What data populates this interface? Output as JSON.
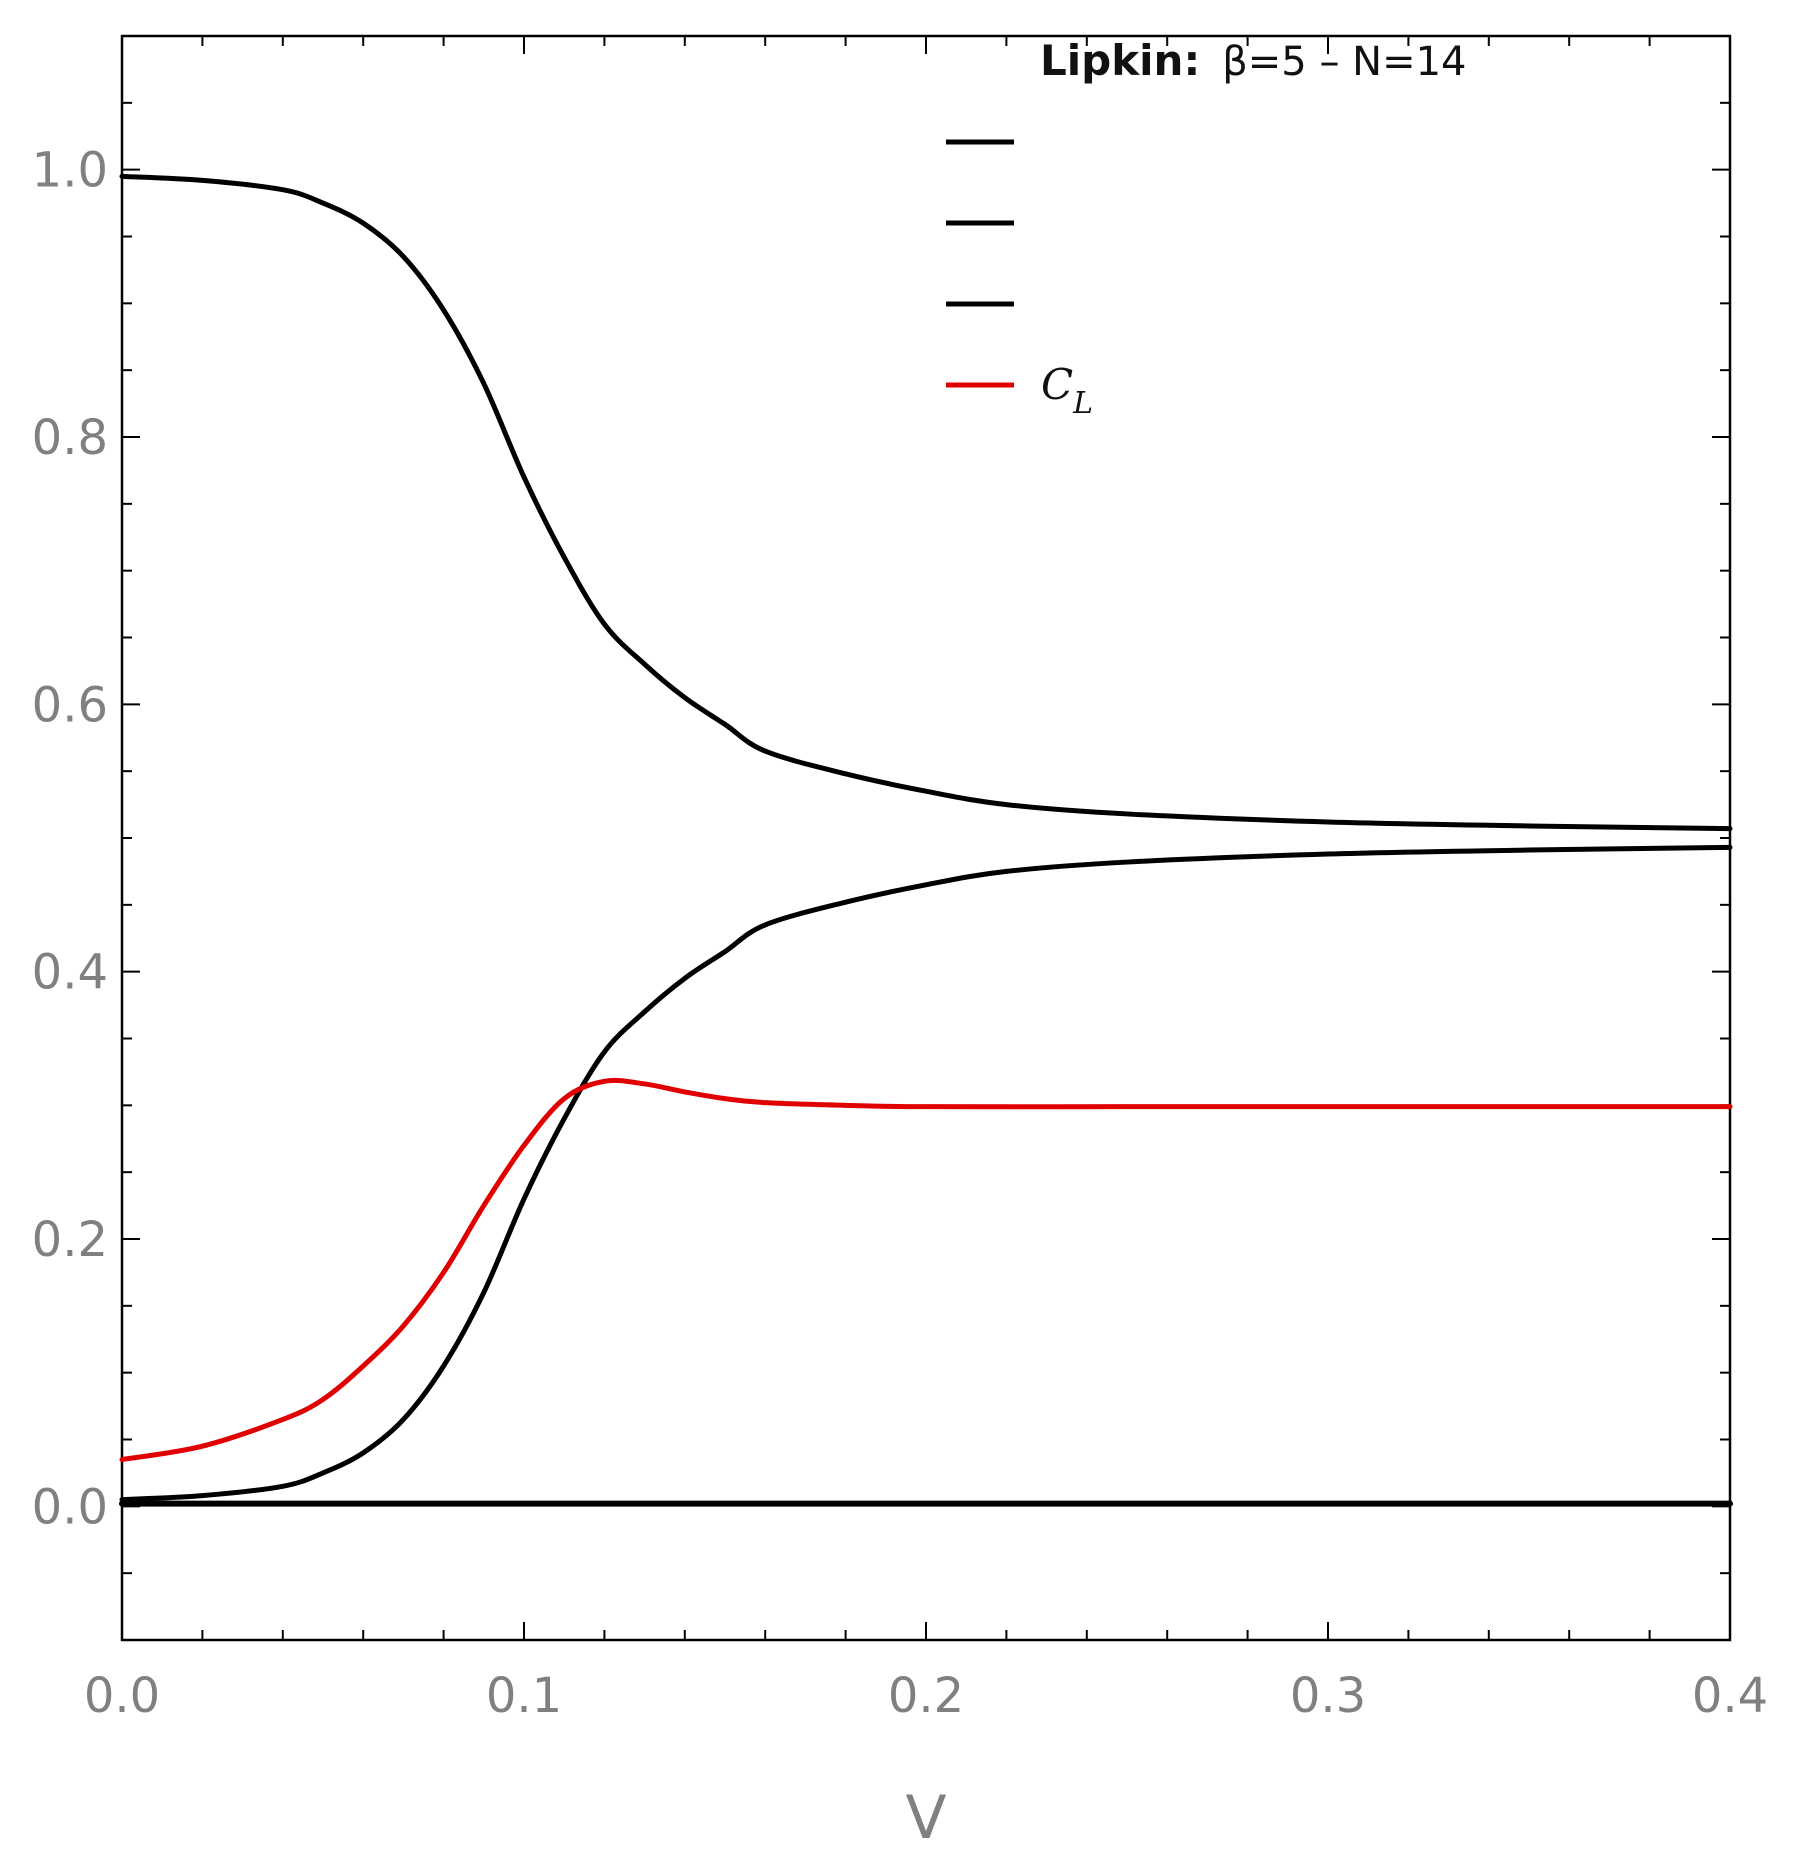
{
  "chart_data": {
    "type": "line",
    "title_bold": "Lipkin:",
    "title_rest": "β=5 – N=14",
    "xlabel": "V",
    "ylabel": "",
    "xlim": [
      0.0,
      0.4
    ],
    "ylim": [
      -0.1,
      1.1
    ],
    "x_ticks": [
      "0.0",
      "0.1",
      "0.2",
      "0.3",
      "0.4"
    ],
    "y_ticks": [
      "0.0",
      "0.2",
      "0.4",
      "0.6",
      "0.8",
      "1.0"
    ],
    "grid": false,
    "legend_position": "top-right",
    "legend": [
      {
        "label": "",
        "color": "#000000"
      },
      {
        "label": "",
        "color": "#000000"
      },
      {
        "label": "",
        "color": "#000000"
      },
      {
        "label": "C",
        "subscript": "L",
        "color": "#e00000"
      }
    ],
    "series": [
      {
        "color": "#000000",
        "x": [
          0.0,
          0.02,
          0.04,
          0.05,
          0.06,
          0.07,
          0.08,
          0.09,
          0.1,
          0.11,
          0.12,
          0.13,
          0.14,
          0.15,
          0.16,
          0.18,
          0.2,
          0.22,
          0.25,
          0.3,
          0.35,
          0.4
        ],
        "y": [
          0.995,
          0.992,
          0.985,
          0.975,
          0.96,
          0.935,
          0.895,
          0.84,
          0.77,
          0.71,
          0.66,
          0.63,
          0.605,
          0.585,
          0.565,
          0.548,
          0.535,
          0.525,
          0.518,
          0.512,
          0.509,
          0.507
        ]
      },
      {
        "color": "#000000",
        "x": [
          0.0,
          0.02,
          0.04,
          0.05,
          0.06,
          0.07,
          0.08,
          0.09,
          0.1,
          0.11,
          0.12,
          0.13,
          0.14,
          0.15,
          0.16,
          0.18,
          0.2,
          0.22,
          0.25,
          0.3,
          0.35,
          0.4
        ],
        "y": [
          0.005,
          0.008,
          0.015,
          0.025,
          0.04,
          0.065,
          0.105,
          0.16,
          0.23,
          0.29,
          0.34,
          0.37,
          0.395,
          0.415,
          0.435,
          0.452,
          0.465,
          0.475,
          0.482,
          0.488,
          0.491,
          0.493
        ]
      },
      {
        "color": "#000000",
        "x": [
          0.0,
          0.4
        ],
        "y": [
          0.002,
          0.002
        ]
      },
      {
        "color": "#e00000",
        "x": [
          0.0,
          0.02,
          0.04,
          0.05,
          0.06,
          0.07,
          0.08,
          0.09,
          0.1,
          0.11,
          0.12,
          0.13,
          0.14,
          0.15,
          0.16,
          0.18,
          0.2,
          0.25,
          0.3,
          0.4
        ],
        "y": [
          0.035,
          0.045,
          0.065,
          0.08,
          0.105,
          0.135,
          0.175,
          0.225,
          0.27,
          0.305,
          0.318,
          0.316,
          0.31,
          0.305,
          0.302,
          0.3,
          0.299,
          0.299,
          0.299,
          0.299
        ]
      }
    ]
  }
}
